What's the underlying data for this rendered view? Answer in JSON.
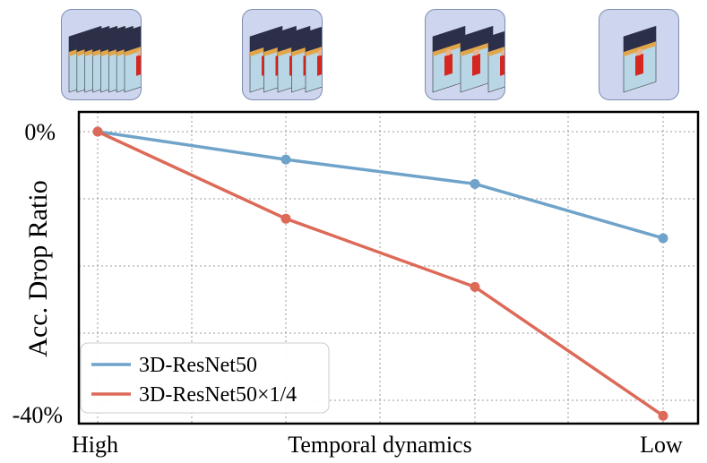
{
  "chart_data": {
    "type": "line",
    "title": "",
    "xlabel": "Temporal dynamics",
    "ylabel": "Acc. Drop Ratio",
    "categories": [
      "High",
      "",
      "",
      "Low"
    ],
    "yticks": [
      "0%",
      "-40%"
    ],
    "ylim": [
      -40,
      0
    ],
    "grid": true,
    "legend_position": "bottom-left",
    "series": [
      {
        "name": "3D-ResNet50",
        "color": "#6fa3c9",
        "values": [
          0,
          -4,
          -7.5,
          -15.3
        ]
      },
      {
        "name": "3D-ResNet50×1/4",
        "color": "#dd6a58",
        "values": [
          0,
          -12.5,
          -22.3,
          -40.8
        ]
      }
    ]
  },
  "thumbnails": [
    {
      "frames": 8,
      "description_icon": "video-frames-icon"
    },
    {
      "frames": 5,
      "description_icon": "video-frames-icon"
    },
    {
      "frames": 3,
      "description_icon": "video-frames-icon"
    },
    {
      "frames": 1,
      "description_icon": "video-frames-icon"
    }
  ]
}
